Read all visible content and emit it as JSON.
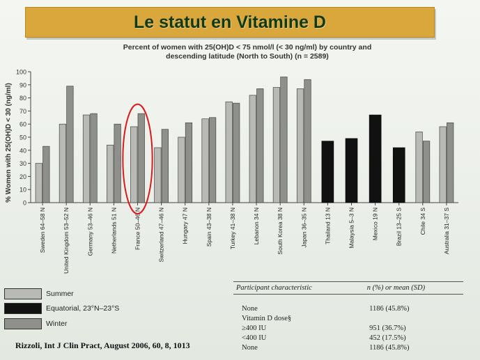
{
  "slide": {
    "title": "Le statut en Vitamine D",
    "citation": "Rizzoli, Int J Clin Pract, August 2006, 60, 8, 1013"
  },
  "legend": [
    {
      "label": "Summer",
      "color": "#b9bab6"
    },
    {
      "label": "Equatorial, 23°N–23°S",
      "color": "#111111"
    },
    {
      "label": "Winter",
      "color": "#8f908c"
    }
  ],
  "chart_data": {
    "type": "bar",
    "title_line1": "Percent of women with 25(OH)D < 75 nmol/l (< 30 ng/ml) by country and",
    "title_line2": "descending latitude (North to South) (n = 2589)",
    "ylabel": "% Women with 25(OH)D < 30 (ng/ml)",
    "ylim": [
      0,
      100
    ],
    "yticks": [
      0,
      10,
      20,
      30,
      40,
      50,
      60,
      70,
      80,
      90,
      100
    ],
    "grid": false,
    "highlighted_category": "France 50–46 N",
    "categories": [
      "Sweden 64–58 N",
      "United Kingdom 53–52 N",
      "Germany 53–46 N",
      "Netherlands 51 N",
      "France 50–46 N",
      "Switzerland 47–46 N",
      "Hungary 47 N",
      "Spain 43–38 N",
      "Turkey 41–38 N",
      "Lebanon 34 N",
      "South Korea 38 N",
      "Japan 36–35 N",
      "Thailand 13 N",
      "Malaysia 5–3 N",
      "Mexico 19 N",
      "Brazil 13–25 S",
      "Chile 34 S",
      "Australia 31–37 S"
    ],
    "series": [
      {
        "name": "Summer",
        "color": "#b9bab6",
        "values": [
          30,
          60,
          67,
          44,
          58,
          42,
          50,
          64,
          77,
          82,
          88,
          87,
          null,
          null,
          null,
          null,
          54,
          58
        ]
      },
      {
        "name": "Equatorial, 23°N–23°S",
        "color": "#111111",
        "values": [
          null,
          null,
          null,
          null,
          null,
          null,
          null,
          null,
          null,
          null,
          null,
          null,
          47,
          49,
          67,
          42,
          null,
          null
        ]
      },
      {
        "name": "Winter",
        "color": "#8f908c",
        "values": [
          43,
          89,
          68,
          60,
          68,
          56,
          61,
          65,
          76,
          87,
          96,
          94,
          null,
          null,
          null,
          null,
          47,
          61
        ]
      }
    ]
  },
  "table": {
    "headers": [
      "Participant characteristic",
      "n (%) or mean (SD)"
    ],
    "rows": [
      [
        "None",
        "1186 (45.8%)"
      ],
      [
        "Vitamin D dose§",
        ""
      ],
      [
        "≥400 IU",
        "951 (36.7%)"
      ],
      [
        "<400 IU",
        "452 (17.5%)"
      ],
      [
        "None",
        "1186 (45.8%)"
      ]
    ]
  }
}
